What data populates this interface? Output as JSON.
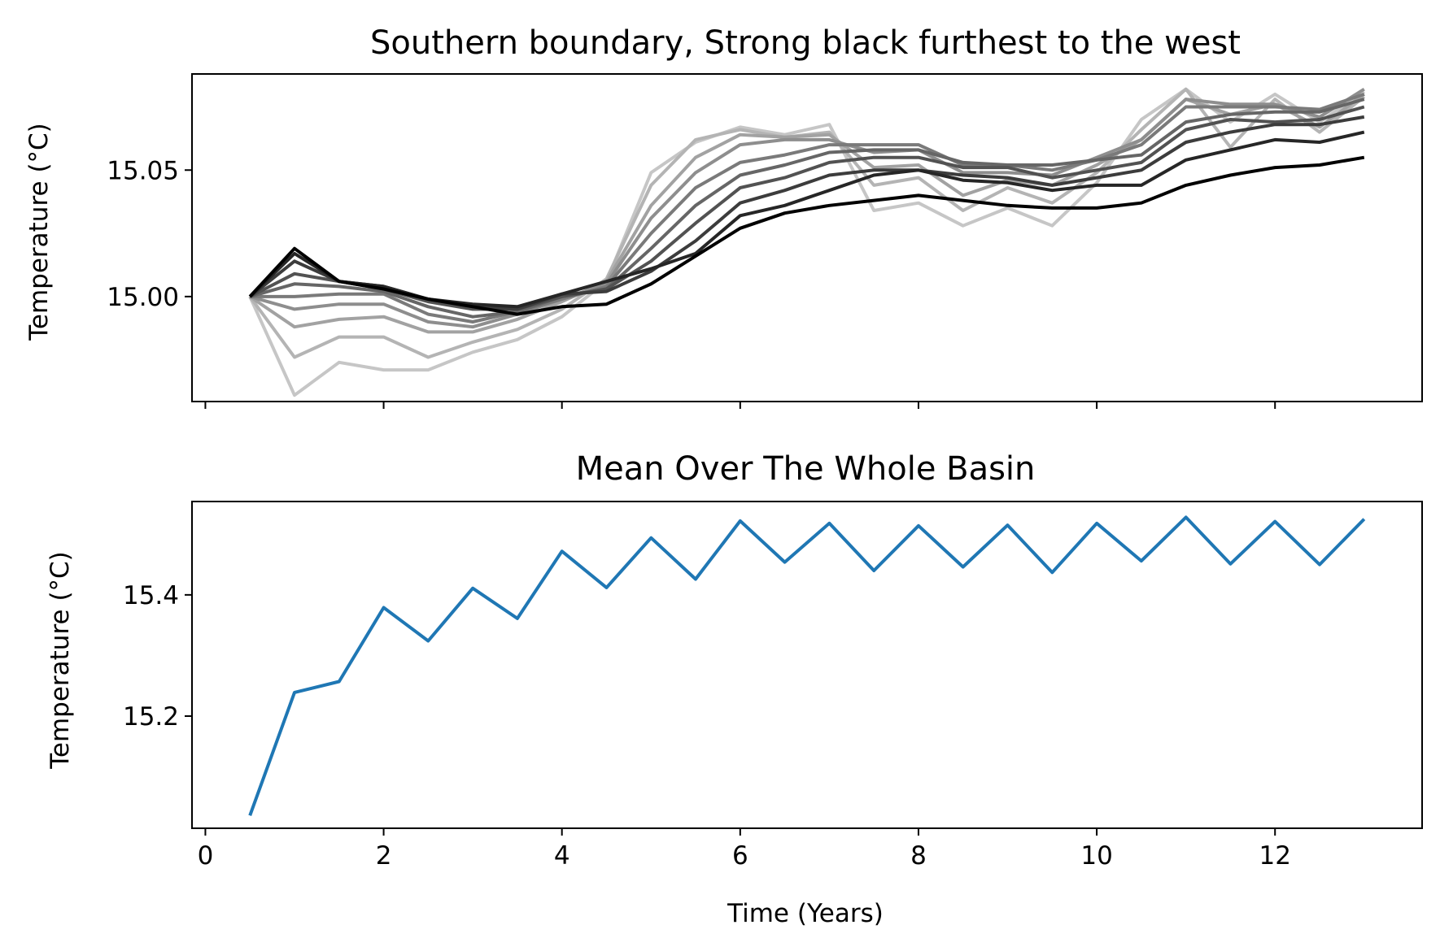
{
  "chart_data": [
    {
      "type": "line",
      "title": "Southern boundary, Strong black furthest to the west",
      "xlabel": "",
      "ylabel": "Temperature (°C)",
      "xlim": [
        -0.15,
        13.65
      ],
      "ylim": [
        14.9585,
        15.088
      ],
      "xticks": [
        0,
        2,
        4,
        6,
        8,
        10,
        12
      ],
      "yticks": [
        15.0,
        15.05
      ],
      "ytick_labels": [
        "15.00",
        "15.05"
      ],
      "x": [
        0.5,
        1.0,
        1.5,
        2.0,
        2.5,
        3.0,
        3.5,
        4.0,
        4.5,
        5.0,
        5.5,
        6.0,
        6.5,
        7.0,
        7.5,
        8.0,
        8.5,
        9.0,
        9.5,
        10.0,
        10.5,
        11.0,
        11.5,
        12.0,
        12.5,
        13.0
      ],
      "grid": false,
      "series": [
        {
          "color": "#c6c6c6",
          "values": [
            15.0,
            14.961,
            14.974,
            14.971,
            14.971,
            14.978,
            14.983,
            14.992,
            15.006,
            15.049,
            15.061,
            15.067,
            15.064,
            15.068,
            15.034,
            15.037,
            15.028,
            15.035,
            15.028,
            15.045,
            15.07,
            15.082,
            15.069,
            15.08,
            15.069,
            15.081
          ]
        },
        {
          "color": "#b4b4b4",
          "values": [
            15.0,
            14.976,
            14.984,
            14.984,
            14.976,
            14.982,
            14.987,
            14.995,
            15.007,
            15.044,
            15.062,
            15.066,
            15.063,
            15.065,
            15.044,
            15.047,
            15.034,
            15.043,
            15.037,
            15.049,
            15.066,
            15.082,
            15.059,
            15.078,
            15.065,
            15.079
          ]
        },
        {
          "color": "#a2a2a2",
          "values": [
            15.0,
            14.988,
            14.991,
            14.992,
            14.986,
            14.986,
            14.991,
            14.998,
            15.006,
            15.036,
            15.055,
            15.064,
            15.063,
            15.064,
            15.051,
            15.052,
            15.04,
            15.046,
            15.044,
            15.052,
            15.062,
            15.078,
            15.072,
            15.076,
            15.067,
            15.08
          ]
        },
        {
          "color": "#8e8e8e",
          "values": [
            15.0,
            14.995,
            14.997,
            14.997,
            14.99,
            14.988,
            14.993,
            14.999,
            15.005,
            15.031,
            15.049,
            15.06,
            15.062,
            15.062,
            15.057,
            15.058,
            15.049,
            15.049,
            15.048,
            15.055,
            15.062,
            15.078,
            15.076,
            15.076,
            15.071,
            15.082
          ]
        },
        {
          "color": "#7a7a7a",
          "values": [
            15.0,
            15.0,
            15.001,
            15.001,
            14.993,
            14.99,
            14.994,
            14.999,
            15.004,
            15.025,
            15.043,
            15.053,
            15.056,
            15.06,
            15.06,
            15.06,
            15.052,
            15.052,
            15.05,
            15.054,
            15.06,
            15.075,
            15.075,
            15.075,
            15.074,
            15.08
          ]
        },
        {
          "color": "#666666",
          "values": [
            15.0,
            15.005,
            15.004,
            15.002,
            14.996,
            14.992,
            14.994,
            15.0,
            15.003,
            15.019,
            15.036,
            15.048,
            15.052,
            15.057,
            15.058,
            15.058,
            15.053,
            15.052,
            15.052,
            15.054,
            15.056,
            15.069,
            15.072,
            15.073,
            15.073,
            15.078
          ]
        },
        {
          "color": "#525252",
          "values": [
            15.0,
            15.009,
            15.006,
            15.003,
            14.998,
            14.995,
            14.995,
            15.0,
            15.003,
            15.014,
            15.029,
            15.043,
            15.047,
            15.053,
            15.055,
            15.055,
            15.051,
            15.051,
            15.047,
            15.05,
            15.053,
            15.066,
            15.07,
            15.069,
            15.07,
            15.075
          ]
        },
        {
          "color": "#3c3c3c",
          "values": [
            15.0,
            15.014,
            15.006,
            15.004,
            14.999,
            14.996,
            14.995,
            15.001,
            15.002,
            15.01,
            15.022,
            15.037,
            15.042,
            15.048,
            15.05,
            15.05,
            15.048,
            15.047,
            15.044,
            15.047,
            15.05,
            15.061,
            15.065,
            15.068,
            15.068,
            15.071
          ]
        },
        {
          "color": "#262626",
          "values": [
            15.0,
            15.017,
            15.006,
            15.004,
            14.999,
            14.997,
            14.996,
            15.001,
            15.006,
            15.011,
            15.017,
            15.032,
            15.036,
            15.042,
            15.048,
            15.05,
            15.046,
            15.045,
            15.042,
            15.044,
            15.044,
            15.054,
            15.058,
            15.062,
            15.061,
            15.065
          ]
        },
        {
          "color": "#000000",
          "values": [
            15.0,
            15.019,
            15.006,
            15.003,
            14.999,
            14.996,
            14.993,
            14.996,
            14.997,
            15.005,
            15.016,
            15.027,
            15.033,
            15.036,
            15.038,
            15.04,
            15.038,
            15.036,
            15.035,
            15.035,
            15.037,
            15.044,
            15.048,
            15.051,
            15.052,
            15.055
          ]
        }
      ]
    },
    {
      "type": "line",
      "title": "Mean Over The Whole Basin",
      "xlabel": "Time (Years)",
      "ylabel": "Temperature (°C)",
      "xlim": [
        -0.15,
        13.65
      ],
      "ylim": [
        15.015,
        15.554
      ],
      "xticks": [
        0,
        2,
        4,
        6,
        8,
        10,
        12
      ],
      "xtick_labels": [
        "0",
        "2",
        "4",
        "6",
        "8",
        "10",
        "12"
      ],
      "yticks": [
        15.2,
        15.4
      ],
      "ytick_labels": [
        "15.2",
        "15.4"
      ],
      "grid": false,
      "series": [
        {
          "color": "#1f77b4",
          "x": [
            0.5,
            1.0,
            1.5,
            2.0,
            2.5,
            3.0,
            3.5,
            4.0,
            4.5,
            5.0,
            5.5,
            6.0,
            6.5,
            7.0,
            7.5,
            8.0,
            8.5,
            9.0,
            9.5,
            10.0,
            10.5,
            11.0,
            11.5,
            12.0,
            12.5,
            13.0
          ],
          "values": [
            15.036,
            15.239,
            15.257,
            15.379,
            15.324,
            15.411,
            15.361,
            15.472,
            15.412,
            15.494,
            15.426,
            15.522,
            15.454,
            15.518,
            15.44,
            15.514,
            15.446,
            15.515,
            15.437,
            15.518,
            15.456,
            15.528,
            15.451,
            15.521,
            15.45,
            15.525
          ]
        }
      ]
    }
  ]
}
